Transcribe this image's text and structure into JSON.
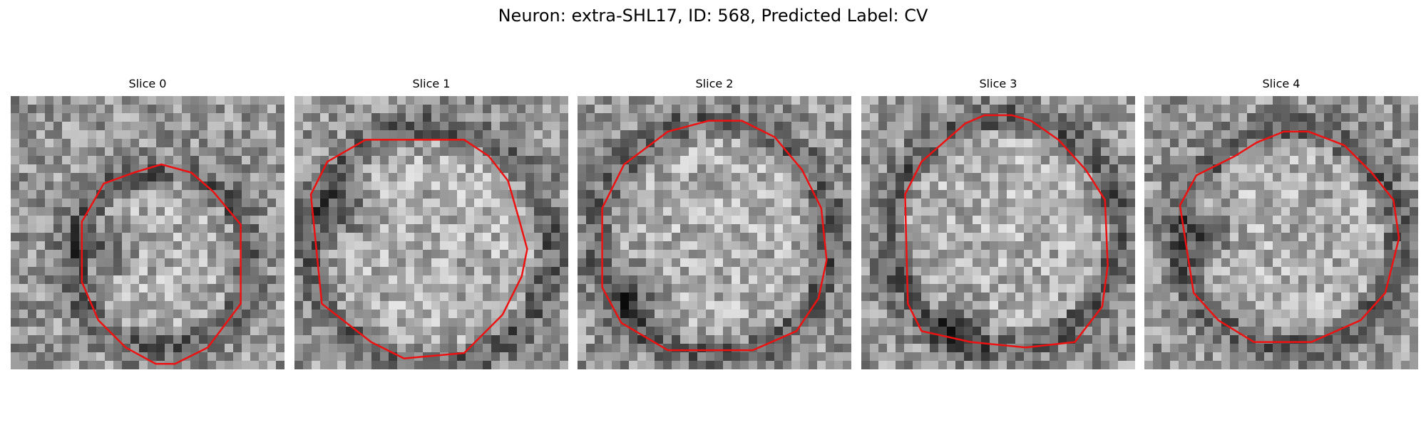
{
  "figure": {
    "title": "Neuron: extra-SHL17, ID: 568, Predicted Label: CV"
  },
  "colors": {
    "contour": "#ee1111",
    "background": "#ffffff"
  },
  "panels": [
    {
      "title": "Slice 0",
      "seed": 11,
      "outline": [
        [
          0.55,
          0.25
        ],
        [
          0.66,
          0.28
        ],
        [
          0.74,
          0.35
        ],
        [
          0.84,
          0.47
        ],
        [
          0.84,
          0.76
        ],
        [
          0.72,
          0.92
        ],
        [
          0.6,
          0.98
        ],
        [
          0.53,
          0.98
        ],
        [
          0.42,
          0.92
        ],
        [
          0.32,
          0.82
        ],
        [
          0.26,
          0.68
        ],
        [
          0.26,
          0.46
        ],
        [
          0.34,
          0.32
        ],
        [
          0.45,
          0.28
        ]
      ],
      "ring_center": [
        0.55,
        0.6
      ],
      "ring_radius": 0.32,
      "dark_side": [
        0.34,
        0.56
      ]
    },
    {
      "title": "Slice 1",
      "seed": 23,
      "outline": [
        [
          0.26,
          0.16
        ],
        [
          0.62,
          0.16
        ],
        [
          0.71,
          0.22
        ],
        [
          0.78,
          0.31
        ],
        [
          0.82,
          0.45
        ],
        [
          0.85,
          0.56
        ],
        [
          0.83,
          0.66
        ],
        [
          0.76,
          0.8
        ],
        [
          0.62,
          0.94
        ],
        [
          0.4,
          0.96
        ],
        [
          0.28,
          0.9
        ],
        [
          0.1,
          0.76
        ],
        [
          0.06,
          0.36
        ],
        [
          0.12,
          0.24
        ]
      ],
      "ring_center": [
        0.5,
        0.55
      ],
      "ring_radius": 0.44,
      "dark_side": [
        0.18,
        0.42
      ]
    },
    {
      "title": "Slice 2",
      "seed": 37,
      "outline": [
        [
          0.33,
          0.13
        ],
        [
          0.48,
          0.09
        ],
        [
          0.6,
          0.09
        ],
        [
          0.72,
          0.15
        ],
        [
          0.82,
          0.27
        ],
        [
          0.89,
          0.41
        ],
        [
          0.91,
          0.6
        ],
        [
          0.88,
          0.74
        ],
        [
          0.8,
          0.86
        ],
        [
          0.64,
          0.93
        ],
        [
          0.33,
          0.93
        ],
        [
          0.16,
          0.83
        ],
        [
          0.09,
          0.7
        ],
        [
          0.09,
          0.41
        ],
        [
          0.17,
          0.25
        ]
      ],
      "ring_center": [
        0.5,
        0.52
      ],
      "ring_radius": 0.43,
      "dark_side": [
        0.22,
        0.72
      ]
    },
    {
      "title": "Slice 3",
      "seed": 51,
      "outline": [
        [
          0.38,
          0.1
        ],
        [
          0.45,
          0.07
        ],
        [
          0.55,
          0.07
        ],
        [
          0.62,
          0.09
        ],
        [
          0.72,
          0.16
        ],
        [
          0.82,
          0.27
        ],
        [
          0.89,
          0.38
        ],
        [
          0.9,
          0.62
        ],
        [
          0.88,
          0.77
        ],
        [
          0.78,
          0.9
        ],
        [
          0.6,
          0.92
        ],
        [
          0.4,
          0.9
        ],
        [
          0.22,
          0.86
        ],
        [
          0.17,
          0.76
        ],
        [
          0.16,
          0.36
        ],
        [
          0.22,
          0.24
        ]
      ],
      "ring_center": [
        0.52,
        0.5
      ],
      "ring_radius": 0.42,
      "dark_side": [
        0.35,
        0.85
      ]
    },
    {
      "title": "Slice 4",
      "seed": 67,
      "outline": [
        [
          0.33,
          0.22
        ],
        [
          0.41,
          0.17
        ],
        [
          0.51,
          0.13
        ],
        [
          0.6,
          0.13
        ],
        [
          0.73,
          0.18
        ],
        [
          0.83,
          0.28
        ],
        [
          0.91,
          0.38
        ],
        [
          0.93,
          0.52
        ],
        [
          0.88,
          0.72
        ],
        [
          0.79,
          0.82
        ],
        [
          0.61,
          0.9
        ],
        [
          0.4,
          0.9
        ],
        [
          0.27,
          0.82
        ],
        [
          0.18,
          0.72
        ],
        [
          0.13,
          0.4
        ],
        [
          0.19,
          0.29
        ]
      ],
      "ring_center": [
        0.53,
        0.52
      ],
      "ring_radius": 0.4,
      "dark_side": [
        0.22,
        0.52
      ]
    }
  ]
}
